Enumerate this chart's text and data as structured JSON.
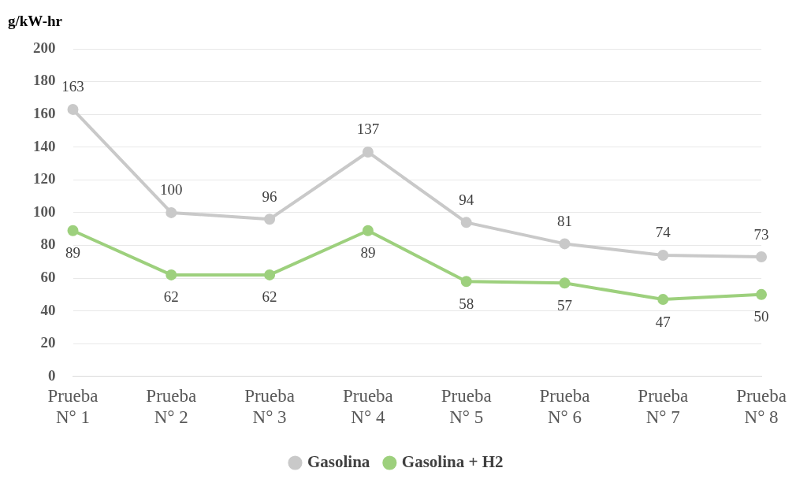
{
  "chart_data": {
    "type": "line",
    "ylabel": "g/kW-hr",
    "categories": [
      "Prueba N° 1",
      "Prueba N° 2",
      "Prueba N° 3",
      "Prueba N° 4",
      "Prueba N° 5",
      "Prueba N° 6",
      "Prueba N° 7",
      "Prueba N° 8"
    ],
    "series": [
      {
        "name": "Gasolina",
        "color": "#c9c9c9",
        "values": [
          163,
          100,
          96,
          137,
          94,
          81,
          74,
          73
        ]
      },
      {
        "name": "Gasolina + H2",
        "color": "#9dd07d",
        "values": [
          89,
          62,
          62,
          89,
          58,
          57,
          47,
          50
        ]
      }
    ],
    "ylim": [
      0,
      200
    ],
    "yticks": [
      0,
      20,
      40,
      60,
      80,
      100,
      120,
      140,
      160,
      180,
      200
    ],
    "grid": "y",
    "legend": "bottom",
    "marker": "circle",
    "line_style": "solid",
    "data_labels": true
  }
}
